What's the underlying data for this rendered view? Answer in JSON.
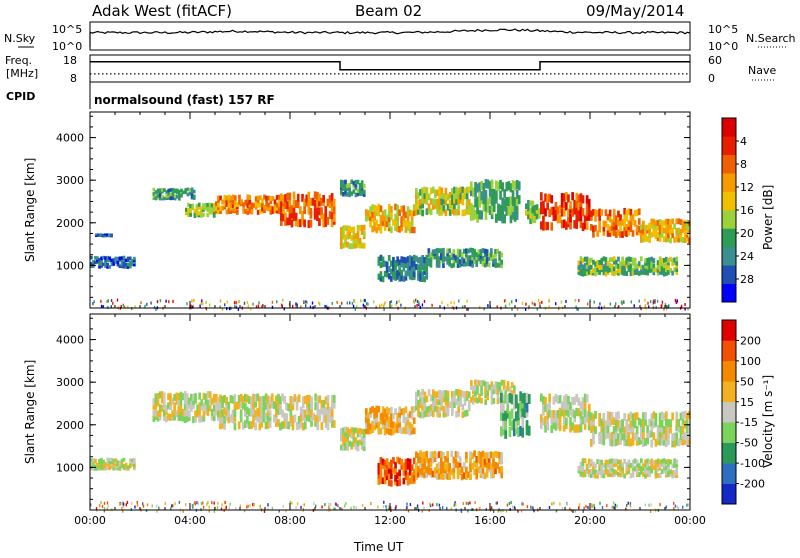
{
  "header": {
    "station": "Adak West (fitACF)",
    "beam": "Beam 02",
    "date": "09/May/2014"
  },
  "strip_nsky": {
    "left_label": "N.Sky",
    "right_label": "N.Search",
    "ticks": [
      "10^5",
      "10^0"
    ],
    "line_color": "#000000"
  },
  "strip_freq": {
    "left_label_top": "Freq.",
    "left_label_unit": "[MHz]",
    "left_ticks": [
      "18",
      "8"
    ],
    "right_label": "Nave",
    "right_ticks": [
      "60",
      "0"
    ],
    "freq_steps": [
      {
        "from_hour": 0,
        "to_hour": 10,
        "level": 0.75
      },
      {
        "from_hour": 10,
        "to_hour": 18,
        "level": 0.45
      },
      {
        "from_hour": 18,
        "to_hour": 24,
        "level": 0.75
      }
    ],
    "nave_level": 0.3
  },
  "cpid": {
    "label": "CPID",
    "text": "normalsound (fast) 157 RF"
  },
  "chart_data": [
    {
      "type": "heatmap",
      "name": "power",
      "ylabel": "Slant Range [km]",
      "ylim": [
        0,
        4600
      ],
      "yticks": [
        "1000",
        "2000",
        "3000",
        "4000"
      ],
      "xlim_hours": [
        0,
        24
      ],
      "colorbar": {
        "label": "Power [dB]",
        "tick_labels": [
          "4",
          "8",
          "12",
          "16",
          "20",
          "24",
          "28"
        ],
        "colors": [
          "#0000ff",
          "#1f4fb0",
          "#3b8f8f",
          "#2e9b56",
          "#9bd23c",
          "#f0c000",
          "#f59b00",
          "#f06000",
          "#e81e00",
          "#dd0000"
        ]
      },
      "echo_bands": [
        {
          "t0": 0,
          "t1": 1.8,
          "r0": 1000,
          "r1": 1250,
          "v": 0.2
        },
        {
          "t0": 0.2,
          "t1": 0.9,
          "r0": 1700,
          "r1": 1760,
          "v": 0.15
        },
        {
          "t0": 2.5,
          "t1": 4.2,
          "r0": 2600,
          "r1": 2850,
          "v": 0.3
        },
        {
          "t0": 3.8,
          "t1": 5.0,
          "r0": 2200,
          "r1": 2500,
          "v": 0.45
        },
        {
          "t0": 5.0,
          "t1": 7.6,
          "r0": 2300,
          "r1": 2700,
          "v": 0.7
        },
        {
          "t0": 7.6,
          "t1": 9.8,
          "r0": 2050,
          "r1": 2800,
          "v": 0.75
        },
        {
          "t0": 10.0,
          "t1": 11.0,
          "r0": 1500,
          "r1": 2000,
          "v": 0.55
        },
        {
          "t0": 10.0,
          "t1": 11.0,
          "r0": 2700,
          "r1": 3050,
          "v": 0.3
        },
        {
          "t0": 11.0,
          "t1": 13.0,
          "r0": 1900,
          "r1": 2500,
          "v": 0.6
        },
        {
          "t0": 13.0,
          "t1": 15.2,
          "r0": 2300,
          "r1": 2900,
          "v": 0.5
        },
        {
          "t0": 15.2,
          "t1": 17.2,
          "r0": 2200,
          "r1": 3100,
          "v": 0.35
        },
        {
          "t0": 17.4,
          "t1": 18.0,
          "r0": 2100,
          "r1": 2600,
          "v": 0.4
        },
        {
          "t0": 11.5,
          "t1": 13.5,
          "r0": 750,
          "r1": 1300,
          "v": 0.25
        },
        {
          "t0": 13.5,
          "t1": 16.5,
          "r0": 1050,
          "r1": 1450,
          "v": 0.3
        },
        {
          "t0": 18.0,
          "t1": 20.0,
          "r0": 2000,
          "r1": 2800,
          "v": 0.8
        },
        {
          "t0": 20.0,
          "t1": 22.0,
          "r0": 1800,
          "r1": 2400,
          "v": 0.7
        },
        {
          "t0": 22.0,
          "t1": 24.0,
          "r0": 1650,
          "r1": 2150,
          "v": 0.6
        },
        {
          "t0": 19.5,
          "t1": 23.5,
          "r0": 850,
          "r1": 1250,
          "v": 0.4
        }
      ]
    },
    {
      "type": "heatmap",
      "name": "velocity",
      "ylabel": "Slant Range [km]",
      "ylim": [
        0,
        4600
      ],
      "yticks": [
        "1000",
        "2000",
        "3000",
        "4000"
      ],
      "xlabel": "Time UT",
      "xticks": [
        "00:00",
        "04:00",
        "08:00",
        "12:00",
        "16:00",
        "20:00",
        "00:00"
      ],
      "xlim_hours": [
        0,
        24
      ],
      "colorbar": {
        "label": "Velocity [m s⁻¹]",
        "tick_labels": [
          "200",
          "100",
          "50",
          "15",
          "-15",
          "-50",
          "-100",
          "-200"
        ],
        "colors": [
          "#1428c8",
          "#2e6ec0",
          "#2a9a5a",
          "#7ad35a",
          "#c8c8c0",
          "#f2b220",
          "#f58a00",
          "#f05000",
          "#e00000"
        ]
      },
      "echo_bands": [
        {
          "t0": 0,
          "t1": 1.8,
          "r0": 1000,
          "r1": 1250,
          "v": 0.5
        },
        {
          "t0": 2.5,
          "t1": 5.0,
          "r0": 2200,
          "r1": 2850,
          "v": 0.5
        },
        {
          "t0": 5.0,
          "t1": 9.8,
          "r0": 2050,
          "r1": 2800,
          "v": 0.5
        },
        {
          "t0": 10.0,
          "t1": 11.0,
          "r0": 1500,
          "r1": 2000,
          "v": 0.5
        },
        {
          "t0": 11.0,
          "t1": 13.0,
          "r0": 1900,
          "r1": 2500,
          "v": 0.62
        },
        {
          "t0": 13.0,
          "t1": 15.2,
          "r0": 2300,
          "r1": 2900,
          "v": 0.5
        },
        {
          "t0": 15.2,
          "t1": 17.0,
          "r0": 2600,
          "r1": 3100,
          "v": 0.5
        },
        {
          "t0": 16.4,
          "t1": 17.6,
          "r0": 1900,
          "r1": 2900,
          "v": 0.34
        },
        {
          "t0": 11.5,
          "t1": 13.0,
          "r0": 700,
          "r1": 1300,
          "v": 0.82
        },
        {
          "t0": 13.0,
          "t1": 16.5,
          "r0": 850,
          "r1": 1450,
          "v": 0.66
        },
        {
          "t0": 18.0,
          "t1": 20.0,
          "r0": 2000,
          "r1": 2800,
          "v": 0.5
        },
        {
          "t0": 20.0,
          "t1": 24.0,
          "r0": 1650,
          "r1": 2400,
          "v": 0.5
        },
        {
          "t0": 19.5,
          "t1": 23.5,
          "r0": 850,
          "r1": 1250,
          "v": 0.5
        }
      ]
    }
  ]
}
